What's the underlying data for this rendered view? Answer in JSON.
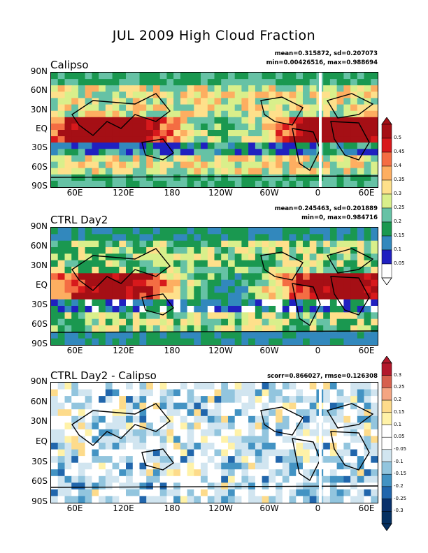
{
  "title": "JUL 2009 High Cloud Fraction",
  "panels": [
    {
      "label": "Calipso",
      "stat1": "mean=0.315872, sd=0.207073",
      "stat2": "min=0.00426516, max=0.988694",
      "kind": "obs"
    },
    {
      "label": "CTRL Day2",
      "stat1": "mean=0.245463, sd=0.201889",
      "stat2": "min=0, max=0.984716",
      "kind": "model"
    },
    {
      "label": "CTRL Day2 - Calipso",
      "stat1": "scorr=0.866027, rmse=0.126308",
      "stat2": "",
      "kind": "diff"
    }
  ],
  "lat_ticks": [
    "90N",
    "60N",
    "30N",
    "EQ",
    "30S",
    "60S",
    "90S"
  ],
  "lon_ticks": [
    "60E",
    "120E",
    "180",
    "120W",
    "60W",
    "0",
    "60E"
  ],
  "colorbar_top": {
    "labels": [
      "0.5",
      "0.45",
      "0.4",
      "0.35",
      "0.3",
      "0.25",
      "0.2",
      "0.15",
      "0.1",
      "0.05"
    ],
    "colors": [
      "#a50f15",
      "#d7191c",
      "#f46d43",
      "#fdae61",
      "#fee08b",
      "#d9ef8b",
      "#66c2a5",
      "#1a9850",
      "#3288bd",
      "#2020c0",
      "#ffffff"
    ]
  },
  "colorbar_bottom": {
    "labels": [
      "0.3",
      "0.25",
      "0.2",
      "0.15",
      "0.1",
      "0.05",
      "-0.05",
      "-0.1",
      "-0.15",
      "-0.2",
      "-0.25",
      "-0.3"
    ],
    "colors": [
      "#b2182b",
      "#d6604d",
      "#f4a582",
      "#fddb8b",
      "#fff2a8",
      "#ffffff",
      "#ffffff",
      "#d1e5f0",
      "#92c5de",
      "#4393c3",
      "#2166ac",
      "#08306b",
      "#053061"
    ]
  }
}
